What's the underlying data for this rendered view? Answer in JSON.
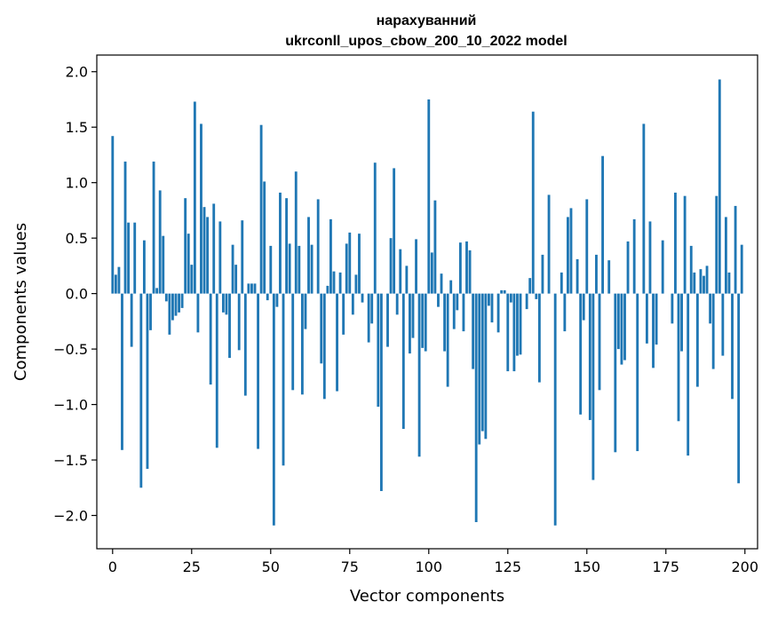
{
  "chart_data": {
    "type": "bar",
    "title_line1": "нарахуванний",
    "title_line2": "ukrconll_upos_cbow_200_10_2022 model",
    "xlabel": "Vector components",
    "ylabel": "Components values",
    "xlim": [
      -5,
      204
    ],
    "ylim": [
      -2.3,
      2.15
    ],
    "xticks": [
      0,
      25,
      50,
      75,
      100,
      125,
      150,
      175,
      200
    ],
    "yticks": [
      -2.0,
      -1.5,
      -1.0,
      -0.5,
      0.0,
      0.5,
      1.0,
      1.5,
      2.0
    ],
    "ytick_labels": [
      "−2.0",
      "−1.5",
      "−1.0",
      "−0.5",
      "0.0",
      "0.5",
      "1.0",
      "1.5",
      "2.0"
    ],
    "bar_color": "#1f77b4",
    "grid": false,
    "values": [
      1.42,
      0.17,
      0.24,
      -1.41,
      1.19,
      0.64,
      -0.48,
      0.64,
      0.0,
      -1.75,
      0.48,
      -1.58,
      -0.33,
      1.19,
      0.05,
      0.93,
      0.52,
      -0.07,
      -0.37,
      -0.24,
      -0.2,
      -0.17,
      -0.13,
      0.86,
      0.54,
      0.26,
      1.73,
      -0.35,
      1.53,
      0.78,
      0.69,
      -0.82,
      0.81,
      -1.39,
      0.65,
      -0.17,
      -0.19,
      -0.58,
      0.44,
      0.26,
      -0.51,
      0.66,
      -0.92,
      0.09,
      0.09,
      0.09,
      -1.4,
      1.52,
      1.01,
      -0.06,
      0.43,
      -2.09,
      -0.12,
      0.91,
      -1.55,
      0.86,
      0.45,
      -0.87,
      1.1,
      0.43,
      -0.91,
      -0.32,
      0.69,
      0.44,
      0.0,
      0.85,
      -0.63,
      -0.95,
      0.07,
      0.67,
      0.2,
      -0.88,
      0.19,
      -0.37,
      0.45,
      0.55,
      -0.19,
      0.17,
      0.54,
      -0.08,
      0.0,
      -0.44,
      -0.27,
      1.18,
      -1.02,
      -1.78,
      0.0,
      -0.48,
      0.5,
      1.13,
      -0.19,
      0.4,
      -1.22,
      0.25,
      -0.54,
      -0.4,
      0.49,
      -1.47,
      -0.49,
      -0.52,
      1.75,
      0.37,
      0.84,
      -0.12,
      0.18,
      -0.52,
      -0.84,
      0.12,
      -0.32,
      -0.15,
      0.46,
      -0.34,
      0.47,
      0.39,
      -0.68,
      -2.06,
      -1.36,
      -1.24,
      -1.31,
      -0.11,
      -0.26,
      0.0,
      -0.35,
      0.03,
      0.03,
      -0.7,
      -0.08,
      -0.7,
      -0.56,
      -0.55,
      0.0,
      -0.14,
      0.14,
      1.64,
      -0.05,
      -0.8,
      0.35,
      0.0,
      0.89,
      0.0,
      -2.09,
      0.0,
      0.19,
      -0.34,
      0.69,
      0.77,
      0.0,
      0.31,
      -1.09,
      -0.24,
      0.85,
      -1.14,
      -1.68,
      0.35,
      -0.87,
      1.24,
      0.0,
      0.3,
      0.0,
      -1.43,
      -0.5,
      -0.64,
      -0.6,
      0.47,
      0.0,
      0.67,
      -1.42,
      0.0,
      1.53,
      -0.45,
      0.65,
      -0.67,
      -0.46,
      0.0,
      0.48,
      0.0,
      0.0,
      -0.27,
      0.91,
      -1.15,
      -0.52,
      0.88,
      -1.46,
      0.43,
      0.19,
      -0.84,
      0.22,
      0.16,
      0.25,
      -0.27,
      -0.68,
      0.88,
      1.93,
      -0.56,
      0.69,
      0.19,
      -0.95,
      0.79,
      -1.71,
      0.44
    ]
  }
}
